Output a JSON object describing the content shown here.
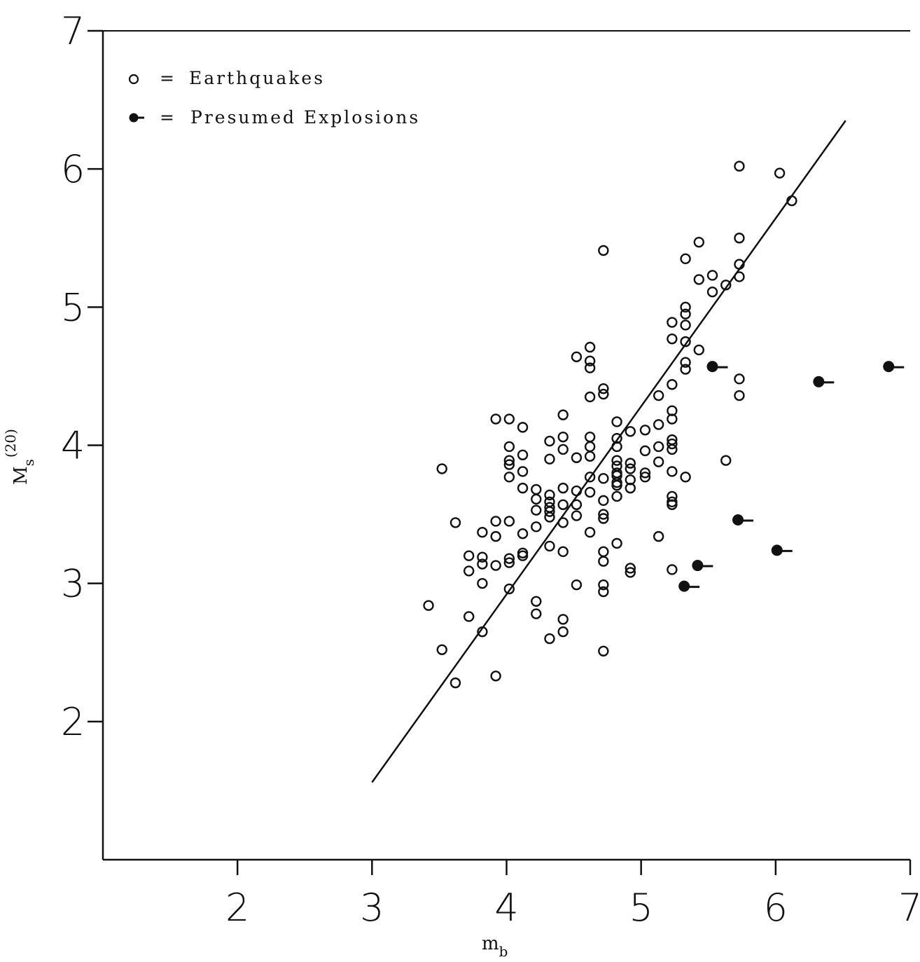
{
  "chart_data": {
    "type": "scatter",
    "title": "",
    "xlabel": {
      "main": "m",
      "sub": "b"
    },
    "ylabel": {
      "main": "M",
      "sub": "s",
      "sup": "(20)"
    },
    "xlim": [
      1,
      7
    ],
    "ylim": [
      1,
      7
    ],
    "xticks": [
      "2",
      "3",
      "4",
      "5",
      "6",
      "7"
    ],
    "yticks": [
      "2",
      "3",
      "4",
      "5",
      "6",
      "7"
    ],
    "grid": false,
    "legend_position": "top-left",
    "legend": [
      {
        "symbol": "o",
        "eq": "=",
        "label": "Earthquakes"
      },
      {
        "symbol": "●-",
        "eq": "=",
        "label": "Presumed Explosions"
      }
    ],
    "series": [
      {
        "name": "Earthquakes",
        "marker": "open-circle",
        "points": [
          [
            5.73,
            6.02
          ],
          [
            6.03,
            5.97
          ],
          [
            6.12,
            5.77
          ],
          [
            5.73,
            5.5
          ],
          [
            4.72,
            5.41
          ],
          [
            5.43,
            5.47
          ],
          [
            5.33,
            5.35
          ],
          [
            5.73,
            5.31
          ],
          [
            5.73,
            5.22
          ],
          [
            5.43,
            5.2
          ],
          [
            5.53,
            5.23
          ],
          [
            5.53,
            5.11
          ],
          [
            5.63,
            5.16
          ],
          [
            5.33,
            5.0
          ],
          [
            5.33,
            4.95
          ],
          [
            5.23,
            4.89
          ],
          [
            5.33,
            4.87
          ],
          [
            5.23,
            4.77
          ],
          [
            5.33,
            4.75
          ],
          [
            4.62,
            4.71
          ],
          [
            5.43,
            4.69
          ],
          [
            4.52,
            4.64
          ],
          [
            4.62,
            4.61
          ],
          [
            5.33,
            4.6
          ],
          [
            4.62,
            4.56
          ],
          [
            5.33,
            4.55
          ],
          [
            5.73,
            4.48
          ],
          [
            5.23,
            4.44
          ],
          [
            4.72,
            4.41
          ],
          [
            4.72,
            4.37
          ],
          [
            4.62,
            4.35
          ],
          [
            5.73,
            4.36
          ],
          [
            5.13,
            4.36
          ],
          [
            5.23,
            4.25
          ],
          [
            4.42,
            4.22
          ],
          [
            3.92,
            4.19
          ],
          [
            4.02,
            4.19
          ],
          [
            5.23,
            4.19
          ],
          [
            4.82,
            4.17
          ],
          [
            5.13,
            4.15
          ],
          [
            4.12,
            4.13
          ],
          [
            5.03,
            4.11
          ],
          [
            4.92,
            4.1
          ],
          [
            4.62,
            4.06
          ],
          [
            4.42,
            4.06
          ],
          [
            4.82,
            4.05
          ],
          [
            5.23,
            4.04
          ],
          [
            4.32,
            4.03
          ],
          [
            5.23,
            4.01
          ],
          [
            4.02,
            3.99
          ],
          [
            4.62,
            3.99
          ],
          [
            4.82,
            3.99
          ],
          [
            5.13,
            3.99
          ],
          [
            4.42,
            3.97
          ],
          [
            5.23,
            3.97
          ],
          [
            5.03,
            3.96
          ],
          [
            4.12,
            3.93
          ],
          [
            4.62,
            3.92
          ],
          [
            4.52,
            3.91
          ],
          [
            4.32,
            3.9
          ],
          [
            4.82,
            3.89
          ],
          [
            4.02,
            3.89
          ],
          [
            5.13,
            3.88
          ],
          [
            4.92,
            3.87
          ],
          [
            5.63,
            3.89
          ],
          [
            4.02,
            3.86
          ],
          [
            4.82,
            3.85
          ],
          [
            4.92,
            3.83
          ],
          [
            3.52,
            3.83
          ],
          [
            4.12,
            3.81
          ],
          [
            5.23,
            3.81
          ],
          [
            4.82,
            3.8
          ],
          [
            5.03,
            3.8
          ],
          [
            4.82,
            3.78
          ],
          [
            4.02,
            3.77
          ],
          [
            4.62,
            3.77
          ],
          [
            5.03,
            3.77
          ],
          [
            5.33,
            3.77
          ],
          [
            4.72,
            3.76
          ],
          [
            4.92,
            3.75
          ],
          [
            4.82,
            3.73
          ],
          [
            4.82,
            3.71
          ],
          [
            4.92,
            3.69
          ],
          [
            4.12,
            3.69
          ],
          [
            4.42,
            3.69
          ],
          [
            4.22,
            3.68
          ],
          [
            4.52,
            3.67
          ],
          [
            4.62,
            3.66
          ],
          [
            4.82,
            3.63
          ],
          [
            5.23,
            3.63
          ],
          [
            4.32,
            3.64
          ],
          [
            4.22,
            3.61
          ],
          [
            4.72,
            3.6
          ],
          [
            4.32,
            3.59
          ],
          [
            5.23,
            3.59
          ],
          [
            4.42,
            3.57
          ],
          [
            4.52,
            3.57
          ],
          [
            5.23,
            3.57
          ],
          [
            4.32,
            3.55
          ],
          [
            4.22,
            3.53
          ],
          [
            4.32,
            3.52
          ],
          [
            4.72,
            3.5
          ],
          [
            4.52,
            3.49
          ],
          [
            4.32,
            3.48
          ],
          [
            4.72,
            3.47
          ],
          [
            4.02,
            3.45
          ],
          [
            3.92,
            3.45
          ],
          [
            3.62,
            3.44
          ],
          [
            4.42,
            3.44
          ],
          [
            4.22,
            3.41
          ],
          [
            3.82,
            3.37
          ],
          [
            4.62,
            3.37
          ],
          [
            4.12,
            3.36
          ],
          [
            3.92,
            3.34
          ],
          [
            5.13,
            3.34
          ],
          [
            4.82,
            3.29
          ],
          [
            4.32,
            3.27
          ],
          [
            4.72,
            3.23
          ],
          [
            4.42,
            3.23
          ],
          [
            4.12,
            3.22
          ],
          [
            4.12,
            3.2
          ],
          [
            3.72,
            3.2
          ],
          [
            3.82,
            3.19
          ],
          [
            4.02,
            3.18
          ],
          [
            4.72,
            3.16
          ],
          [
            4.02,
            3.15
          ],
          [
            3.82,
            3.14
          ],
          [
            3.92,
            3.13
          ],
          [
            4.92,
            3.11
          ],
          [
            5.23,
            3.1
          ],
          [
            3.72,
            3.09
          ],
          [
            4.92,
            3.08
          ],
          [
            3.82,
            3.0
          ],
          [
            4.52,
            2.99
          ],
          [
            4.72,
            2.99
          ],
          [
            4.72,
            2.94
          ],
          [
            4.02,
            2.96
          ],
          [
            4.22,
            2.87
          ],
          [
            3.42,
            2.84
          ],
          [
            4.22,
            2.78
          ],
          [
            3.72,
            2.76
          ],
          [
            4.42,
            2.74
          ],
          [
            3.82,
            2.65
          ],
          [
            4.42,
            2.65
          ],
          [
            4.32,
            2.6
          ],
          [
            3.52,
            2.52
          ],
          [
            4.72,
            2.51
          ],
          [
            3.92,
            2.33
          ],
          [
            3.62,
            2.28
          ]
        ]
      },
      {
        "name": "Presumed Explosions",
        "marker": "filled-circle-tail",
        "points": [
          [
            6.84,
            4.57
          ],
          [
            6.32,
            4.46
          ],
          [
            5.53,
            4.57
          ],
          [
            5.72,
            3.46
          ],
          [
            6.01,
            3.24
          ],
          [
            5.42,
            3.13
          ],
          [
            5.32,
            2.98
          ]
        ]
      }
    ],
    "fit_line": {
      "x": [
        3.0,
        6.52
      ],
      "y": [
        1.56,
        6.35
      ]
    }
  }
}
